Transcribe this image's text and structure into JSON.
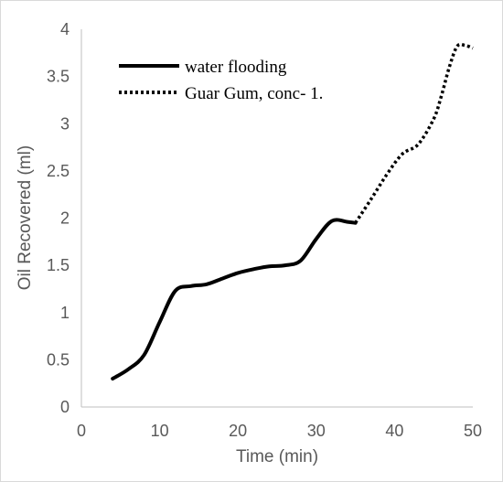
{
  "chart_data": {
    "type": "line",
    "xlabel": "Time (min)",
    "ylabel": "Oil Recovered (ml)",
    "xlim": [
      0,
      50
    ],
    "ylim": [
      0,
      4
    ],
    "xticks": [
      "0",
      "10",
      "20",
      "30",
      "40",
      "50"
    ],
    "yticks": [
      "0",
      "0.5",
      "1",
      "1.5",
      "2",
      "2.5",
      "3",
      "3.5",
      "4"
    ],
    "grid": false,
    "legend_position": "top-left",
    "series": [
      {
        "name": "water flooding",
        "style": "solid",
        "color": "#000000",
        "x": [
          4,
          6,
          8,
          10,
          12,
          14,
          16,
          18,
          20,
          22,
          24,
          26,
          28,
          30,
          32,
          34,
          35
        ],
        "y": [
          0.3,
          0.4,
          0.55,
          0.9,
          1.23,
          1.28,
          1.3,
          1.36,
          1.42,
          1.46,
          1.49,
          1.5,
          1.55,
          1.78,
          1.97,
          1.96,
          1.95
        ]
      },
      {
        "name": "Guar Gum, conc- 1.",
        "style": "dotted",
        "color": "#000000",
        "x": [
          35,
          37,
          39,
          41,
          43,
          45,
          46,
          47,
          48,
          49,
          50
        ],
        "y": [
          1.95,
          2.2,
          2.46,
          2.68,
          2.78,
          3.05,
          3.3,
          3.6,
          3.82,
          3.83,
          3.8
        ]
      }
    ]
  }
}
